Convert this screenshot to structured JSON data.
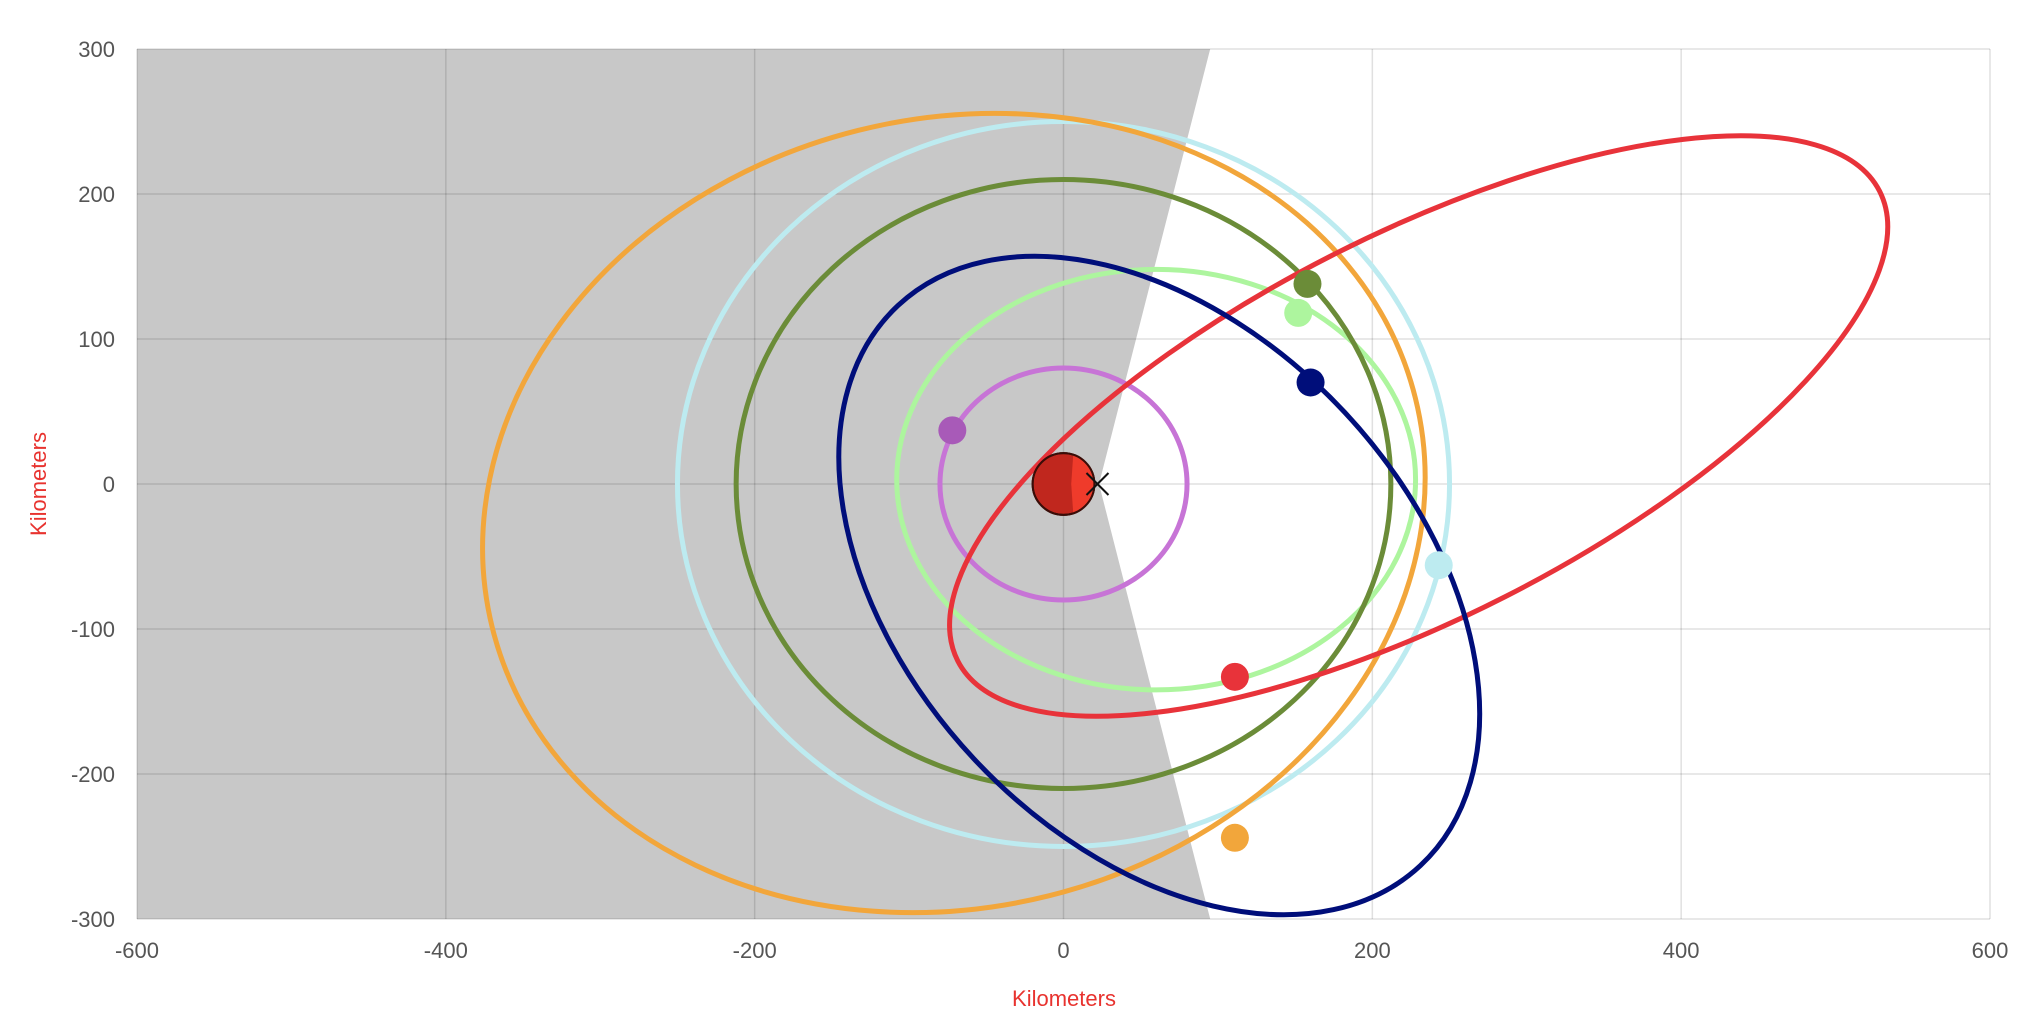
{
  "chart_data": {
    "type": "scatter",
    "title": "",
    "xlabel": "Kilometers",
    "ylabel": "Kilometers",
    "xlim": [
      -600,
      600
    ],
    "ylim": [
      -300,
      300
    ],
    "x_ticks": [
      -600,
      -400,
      -200,
      0,
      200,
      400,
      600
    ],
    "y_ticks": [
      -300,
      -200,
      -100,
      0,
      100,
      200,
      300
    ],
    "x_tick_labels": [
      "-600",
      "-400",
      "-200",
      "0",
      "200",
      "400",
      "600"
    ],
    "y_tick_labels": [
      "-300",
      "-200",
      "-100",
      "0",
      "100",
      "200",
      "300"
    ],
    "grid": true,
    "axis_title_color": "#e8332f",
    "night_shadow": {
      "color": "#c8c8c8",
      "boundary": [
        [
          95,
          300
        ],
        [
          23,
          0
        ],
        [
          95,
          -300
        ]
      ]
    },
    "central_body": {
      "x": 0,
      "y": 0,
      "radius_km": 20,
      "color": "#c0271e",
      "lit_color": "#ef3b2b"
    },
    "reference_marker": {
      "x": 22,
      "y": 0,
      "symbol": "cross"
    },
    "orbits": [
      {
        "cx": 0,
        "cy": 0,
        "rx": 80,
        "ry": 80,
        "rotation_deg": 0,
        "color": "#c774d6",
        "sat_x": -72,
        "sat_y": 37,
        "sat_color": "#a85ab8"
      },
      {
        "cx": 60,
        "cy": 3,
        "rx": 168,
        "ry": 145,
        "rotation_deg": 0,
        "color": "#adf59e",
        "sat_x": 152,
        "sat_y": 118,
        "sat_color": "#adf59e"
      },
      {
        "cx": 0,
        "cy": 0,
        "rx": 212,
        "ry": 210,
        "rotation_deg": 0,
        "color": "#6b8c38",
        "sat_x": 158,
        "sat_y": 138,
        "sat_color": "#6b8c38"
      },
      {
        "cx": 0,
        "cy": 0,
        "rx": 250,
        "ry": 250,
        "rotation_deg": 0,
        "color": "#bdebf0",
        "sat_x": 243,
        "sat_y": -56,
        "sat_color": "#bdebf0"
      },
      {
        "cx": -71,
        "cy": -20,
        "rx": 308,
        "ry": 272,
        "rotation_deg": 14,
        "color": "#f2a63b",
        "sat_x": 111,
        "sat_y": -244,
        "sat_color": "#f2a63b"
      },
      {
        "cx": 230,
        "cy": 40,
        "rx": 335,
        "ry": 132,
        "rotation_deg": 27,
        "color": "#e8333a",
        "sat_x": 111,
        "sat_y": -133,
        "sat_color": "#e8333a"
      },
      {
        "cx": 62,
        "cy": -70,
        "rx": 248,
        "ry": 175,
        "rotation_deg": 133,
        "color": "#000e7a",
        "sat_x": 160,
        "sat_y": 70,
        "sat_color": "#000e7a"
      }
    ]
  }
}
